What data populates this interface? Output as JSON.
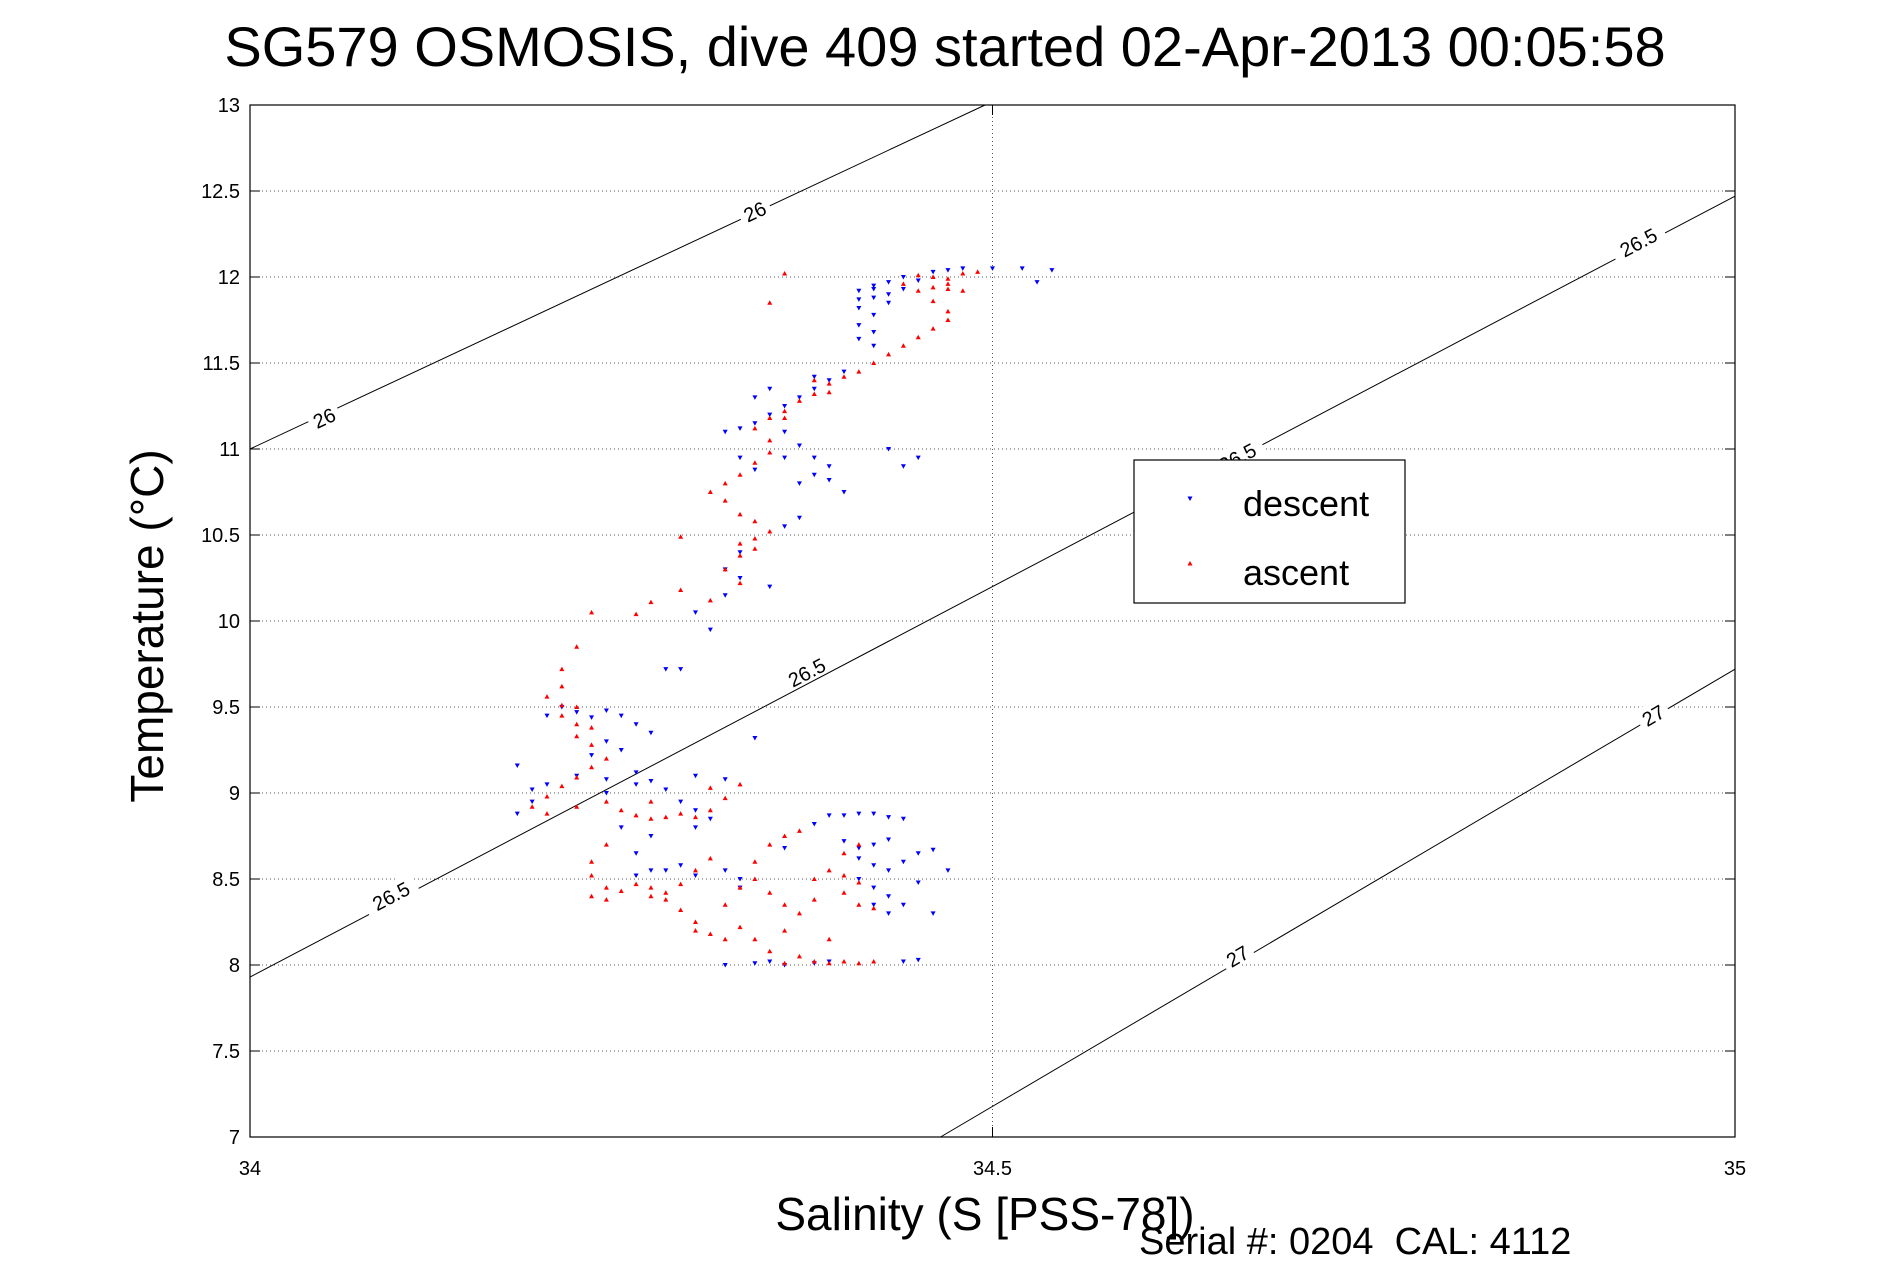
{
  "chart_data": {
    "type": "scatter",
    "title": "SG579 OSMOSIS, dive 409 started 02-Apr-2013 00:05:58",
    "xlabel": "Salinity (S [PSS-78])",
    "ylabel": "Temperature (°C)",
    "xlim": [
      34,
      35
    ],
    "ylim": [
      7,
      13
    ],
    "x_ticks": [
      34,
      34.5,
      35
    ],
    "x_tick_labels": [
      "34",
      "34.5",
      "35"
    ],
    "y_ticks": [
      7,
      7.5,
      8,
      8.5,
      9,
      9.5,
      10,
      10.5,
      11,
      11.5,
      12,
      12.5,
      13
    ],
    "y_tick_labels": [
      "7",
      "7.5",
      "8",
      "8.5",
      "9",
      "9.5",
      "10",
      "10.5",
      "11",
      "11.5",
      "12",
      "12.5",
      "13"
    ],
    "grid": true,
    "legend_position": "center-right",
    "footer": "Serial #: 0204  CAL: 4112",
    "isopycnals": [
      {
        "label": "26",
        "points": [
          [
            34.0,
            11.0
          ],
          [
            34.495,
            13.0
          ]
        ],
        "label_positions": [
          [
            34.05,
            11.18
          ],
          [
            34.34,
            12.38
          ]
        ]
      },
      {
        "label": "26.5",
        "points": [
          [
            34.0,
            7.93
          ],
          [
            35.0,
            12.47
          ]
        ],
        "label_positions": [
          [
            34.095,
            8.4
          ],
          [
            34.375,
            9.7
          ],
          [
            34.665,
            10.95
          ],
          [
            34.935,
            12.2
          ]
        ]
      },
      {
        "label": "27",
        "points": [
          [
            34.465,
            7.0
          ],
          [
            35.0,
            9.72
          ]
        ],
        "label_positions": [
          [
            34.665,
            8.05
          ],
          [
            34.945,
            9.45
          ]
        ]
      }
    ],
    "series": [
      {
        "name": "descent",
        "color": "#0000ff",
        "marker": "triangle-down",
        "points": [
          [
            34.5,
            12.05
          ],
          [
            34.48,
            12.05
          ],
          [
            34.47,
            12.04
          ],
          [
            34.46,
            12.03
          ],
          [
            34.52,
            12.05
          ],
          [
            34.54,
            12.04
          ],
          [
            34.53,
            11.97
          ],
          [
            34.44,
            12.0
          ],
          [
            34.43,
            11.97
          ],
          [
            34.42,
            11.95
          ],
          [
            34.41,
            11.92
          ],
          [
            34.42,
            11.88
          ],
          [
            34.43,
            11.85
          ],
          [
            34.41,
            11.82
          ],
          [
            34.42,
            11.78
          ],
          [
            34.41,
            11.72
          ],
          [
            34.42,
            11.68
          ],
          [
            34.41,
            11.64
          ],
          [
            34.42,
            11.6
          ],
          [
            34.43,
            11.9
          ],
          [
            34.44,
            11.93
          ],
          [
            34.45,
            11.98
          ],
          [
            34.42,
            11.93
          ],
          [
            34.41,
            11.87
          ],
          [
            34.4,
            11.45
          ],
          [
            34.39,
            11.4
          ],
          [
            34.38,
            11.35
          ],
          [
            34.37,
            11.3
          ],
          [
            34.36,
            11.25
          ],
          [
            34.35,
            11.2
          ],
          [
            34.34,
            11.15
          ],
          [
            34.33,
            11.12
          ],
          [
            34.32,
            11.1
          ],
          [
            34.34,
            11.3
          ],
          [
            34.35,
            11.35
          ],
          [
            34.38,
            11.42
          ],
          [
            34.36,
            11.1
          ],
          [
            34.37,
            11.02
          ],
          [
            34.38,
            10.95
          ],
          [
            34.39,
            10.9
          ],
          [
            34.36,
            10.95
          ],
          [
            34.33,
            10.95
          ],
          [
            34.34,
            10.88
          ],
          [
            34.37,
            10.8
          ],
          [
            34.4,
            10.75
          ],
          [
            34.39,
            10.82
          ],
          [
            34.38,
            10.85
          ],
          [
            34.37,
            10.6
          ],
          [
            34.36,
            10.55
          ],
          [
            34.35,
            10.2
          ],
          [
            34.33,
            10.4
          ],
          [
            34.32,
            10.3
          ],
          [
            34.33,
            10.25
          ],
          [
            34.44,
            10.9
          ],
          [
            34.43,
            11.0
          ],
          [
            34.45,
            10.95
          ],
          [
            34.3,
            10.05
          ],
          [
            34.32,
            10.15
          ],
          [
            34.31,
            9.95
          ],
          [
            34.29,
            9.72
          ],
          [
            34.28,
            9.72
          ],
          [
            34.34,
            9.32
          ],
          [
            34.2,
            9.45
          ],
          [
            34.21,
            9.5
          ],
          [
            34.22,
            9.47
          ],
          [
            34.23,
            9.44
          ],
          [
            34.24,
            9.48
          ],
          [
            34.25,
            9.45
          ],
          [
            34.26,
            9.4
          ],
          [
            34.27,
            9.35
          ],
          [
            34.24,
            9.3
          ],
          [
            34.23,
            9.22
          ],
          [
            34.25,
            9.25
          ],
          [
            34.26,
            9.12
          ],
          [
            34.24,
            9.08
          ],
          [
            34.22,
            9.1
          ],
          [
            34.2,
            9.05
          ],
          [
            34.19,
            9.02
          ],
          [
            34.18,
            8.88
          ],
          [
            34.19,
            8.95
          ],
          [
            34.18,
            9.16
          ],
          [
            34.24,
            9.0
          ],
          [
            34.26,
            9.05
          ],
          [
            34.28,
            9.02
          ],
          [
            34.29,
            8.95
          ],
          [
            34.3,
            8.9
          ],
          [
            34.31,
            8.85
          ],
          [
            34.27,
            9.07
          ],
          [
            34.32,
            9.08
          ],
          [
            34.3,
            9.1
          ],
          [
            34.25,
            8.8
          ],
          [
            34.26,
            8.65
          ],
          [
            34.27,
            8.55
          ],
          [
            34.26,
            8.52
          ],
          [
            34.28,
            8.55
          ],
          [
            34.29,
            8.58
          ],
          [
            34.3,
            8.52
          ],
          [
            34.27,
            8.75
          ],
          [
            34.3,
            8.8
          ],
          [
            34.33,
            8.5
          ],
          [
            34.32,
            8.55
          ],
          [
            34.33,
            8.45
          ],
          [
            34.36,
            8.68
          ],
          [
            34.38,
            8.82
          ],
          [
            34.39,
            8.87
          ],
          [
            34.4,
            8.87
          ],
          [
            34.41,
            8.88
          ],
          [
            34.42,
            8.88
          ],
          [
            34.43,
            8.86
          ],
          [
            34.44,
            8.85
          ],
          [
            34.4,
            8.72
          ],
          [
            34.41,
            8.68
          ],
          [
            34.42,
            8.7
          ],
          [
            34.43,
            8.73
          ],
          [
            34.41,
            8.62
          ],
          [
            34.42,
            8.58
          ],
          [
            34.43,
            8.55
          ],
          [
            34.44,
            8.6
          ],
          [
            34.45,
            8.65
          ],
          [
            34.46,
            8.67
          ],
          [
            34.41,
            8.5
          ],
          [
            34.42,
            8.45
          ],
          [
            34.43,
            8.4
          ],
          [
            34.42,
            8.35
          ],
          [
            34.43,
            8.3
          ],
          [
            34.44,
            8.35
          ],
          [
            34.45,
            8.48
          ],
          [
            34.47,
            8.55
          ],
          [
            34.46,
            8.3
          ],
          [
            34.39,
            8.02
          ],
          [
            34.38,
            8.01
          ],
          [
            34.36,
            8.0
          ],
          [
            34.35,
            8.02
          ],
          [
            34.34,
            8.01
          ],
          [
            34.32,
            8.0
          ],
          [
            34.44,
            8.02
          ],
          [
            34.45,
            8.03
          ]
        ]
      },
      {
        "name": "ascent",
        "color": "#ff0000",
        "marker": "triangle-up",
        "points": [
          [
            34.36,
            12.02
          ],
          [
            34.45,
            12.01
          ],
          [
            34.46,
            12.0
          ],
          [
            34.47,
            11.99
          ],
          [
            34.48,
            12.02
          ],
          [
            34.49,
            12.03
          ],
          [
            34.47,
            11.96
          ],
          [
            34.46,
            11.94
          ],
          [
            34.45,
            11.92
          ],
          [
            34.44,
            11.96
          ],
          [
            34.47,
            11.93
          ],
          [
            34.48,
            11.92
          ],
          [
            34.46,
            11.86
          ],
          [
            34.47,
            11.8
          ],
          [
            34.47,
            11.75
          ],
          [
            34.46,
            11.7
          ],
          [
            34.45,
            11.65
          ],
          [
            34.44,
            11.6
          ],
          [
            34.43,
            11.55
          ],
          [
            34.42,
            11.5
          ],
          [
            34.41,
            11.45
          ],
          [
            34.4,
            11.42
          ],
          [
            34.39,
            11.38
          ],
          [
            34.38,
            11.32
          ],
          [
            34.37,
            11.28
          ],
          [
            34.36,
            11.22
          ],
          [
            34.35,
            11.18
          ],
          [
            34.34,
            11.12
          ],
          [
            34.35,
            11.05
          ],
          [
            34.36,
            11.18
          ],
          [
            34.38,
            11.4
          ],
          [
            34.39,
            11.33
          ],
          [
            34.35,
            10.98
          ],
          [
            34.34,
            10.92
          ],
          [
            34.33,
            10.85
          ],
          [
            34.32,
            10.8
          ],
          [
            34.31,
            10.75
          ],
          [
            34.32,
            10.7
          ],
          [
            34.33,
            10.62
          ],
          [
            34.34,
            10.58
          ],
          [
            34.35,
            10.52
          ],
          [
            34.34,
            10.48
          ],
          [
            34.33,
            10.45
          ],
          [
            34.34,
            10.42
          ],
          [
            34.33,
            10.38
          ],
          [
            34.32,
            10.3
          ],
          [
            34.33,
            10.22
          ],
          [
            34.31,
            10.12
          ],
          [
            34.35,
            11.85
          ],
          [
            34.29,
            10.49
          ],
          [
            34.29,
            10.18
          ],
          [
            34.27,
            10.11
          ],
          [
            34.26,
            10.04
          ],
          [
            34.23,
            10.05
          ],
          [
            34.22,
            9.85
          ],
          [
            34.21,
            9.72
          ],
          [
            34.21,
            9.62
          ],
          [
            34.2,
            9.56
          ],
          [
            34.21,
            9.51
          ],
          [
            34.22,
            9.5
          ],
          [
            34.21,
            9.45
          ],
          [
            34.22,
            9.4
          ],
          [
            34.23,
            9.38
          ],
          [
            34.22,
            9.33
          ],
          [
            34.23,
            9.28
          ],
          [
            34.24,
            9.2
          ],
          [
            34.23,
            9.15
          ],
          [
            34.22,
            9.09
          ],
          [
            34.21,
            9.04
          ],
          [
            34.2,
            8.98
          ],
          [
            34.19,
            8.92
          ],
          [
            34.2,
            8.88
          ],
          [
            34.22,
            8.92
          ],
          [
            34.24,
            8.95
          ],
          [
            34.25,
            8.9
          ],
          [
            34.26,
            8.87
          ],
          [
            34.27,
            8.85
          ],
          [
            34.28,
            8.86
          ],
          [
            34.29,
            8.88
          ],
          [
            34.3,
            8.86
          ],
          [
            34.31,
            8.9
          ],
          [
            34.32,
            8.97
          ],
          [
            34.33,
            9.05
          ],
          [
            34.31,
            9.03
          ],
          [
            34.27,
            8.95
          ],
          [
            34.24,
            8.7
          ],
          [
            34.23,
            8.6
          ],
          [
            34.23,
            8.52
          ],
          [
            34.24,
            8.45
          ],
          [
            34.23,
            8.4
          ],
          [
            34.24,
            8.38
          ],
          [
            34.25,
            8.43
          ],
          [
            34.26,
            8.47
          ],
          [
            34.27,
            8.45
          ],
          [
            34.28,
            8.42
          ],
          [
            34.29,
            8.47
          ],
          [
            34.3,
            8.55
          ],
          [
            34.31,
            8.62
          ],
          [
            34.29,
            8.32
          ],
          [
            34.28,
            8.38
          ],
          [
            34.27,
            8.4
          ],
          [
            34.3,
            8.2
          ],
          [
            34.31,
            8.18
          ],
          [
            34.32,
            8.15
          ],
          [
            34.3,
            8.25
          ],
          [
            34.32,
            8.35
          ],
          [
            34.33,
            8.22
          ],
          [
            34.33,
            8.45
          ],
          [
            34.34,
            8.6
          ],
          [
            34.35,
            8.7
          ],
          [
            34.36,
            8.75
          ],
          [
            34.37,
            8.78
          ],
          [
            34.34,
            8.5
          ],
          [
            34.35,
            8.42
          ],
          [
            34.36,
            8.35
          ],
          [
            34.37,
            8.3
          ],
          [
            34.38,
            8.38
          ],
          [
            34.38,
            8.5
          ],
          [
            34.39,
            8.55
          ],
          [
            34.4,
            8.52
          ],
          [
            34.41,
            8.48
          ],
          [
            34.4,
            8.42
          ],
          [
            34.41,
            8.35
          ],
          [
            34.42,
            8.33
          ],
          [
            34.4,
            8.65
          ],
          [
            34.41,
            8.7
          ],
          [
            34.37,
            8.05
          ],
          [
            34.38,
            8.02
          ],
          [
            34.39,
            8.01
          ],
          [
            34.4,
            8.02
          ],
          [
            34.41,
            8.01
          ],
          [
            34.42,
            8.02
          ],
          [
            34.36,
            8.01
          ],
          [
            34.35,
            8.08
          ],
          [
            34.34,
            8.15
          ],
          [
            34.36,
            8.2
          ],
          [
            34.39,
            8.15
          ]
        ]
      }
    ]
  }
}
